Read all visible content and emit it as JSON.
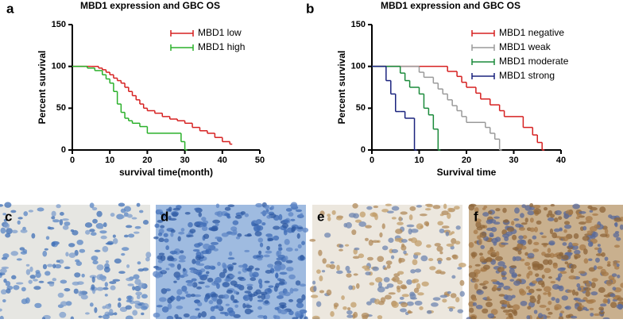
{
  "chart_data": [
    {
      "type": "step",
      "panel_label": "a",
      "title": "MBD1 expression and GBC OS",
      "xlabel": "survival time(month)",
      "ylabel": "Percent survival",
      "xlim": [
        0,
        50
      ],
      "xticks": [
        0,
        10,
        20,
        30,
        40,
        50
      ],
      "ylim": [
        0,
        150
      ],
      "yticks": [
        0,
        50,
        100,
        150
      ],
      "legend": "upper right",
      "series": [
        {
          "name": "MBD1 low",
          "color": "#d62020",
          "x": [
            0,
            5,
            7,
            8,
            9,
            10,
            11,
            12,
            13,
            14,
            15,
            16,
            17,
            18,
            19,
            20,
            22,
            24,
            26,
            28,
            30,
            32,
            34,
            36,
            38,
            40,
            42
          ],
          "values": [
            100,
            100,
            98,
            96,
            93,
            90,
            86,
            83,
            80,
            75,
            70,
            65,
            60,
            55,
            50,
            47,
            44,
            40,
            37,
            35,
            32,
            27,
            23,
            20,
            15,
            10,
            7
          ]
        },
        {
          "name": "MBD1 high",
          "color": "#2ab02a",
          "x": [
            0,
            4,
            6,
            8,
            9,
            10,
            11,
            12,
            13,
            14,
            15,
            16,
            18,
            20,
            29,
            30
          ],
          "values": [
            100,
            98,
            95,
            90,
            85,
            80,
            70,
            55,
            45,
            38,
            35,
            32,
            28,
            20,
            10,
            0
          ]
        }
      ]
    },
    {
      "type": "step",
      "panel_label": "b",
      "title": "MBD1 expression and GBC OS",
      "xlabel": "Survival time",
      "ylabel": "Percent survival",
      "xlim": [
        0,
        40
      ],
      "xticks": [
        0,
        10,
        20,
        30,
        40
      ],
      "ylim": [
        0,
        150
      ],
      "yticks": [
        0,
        50,
        100,
        150
      ],
      "legend": "upper right",
      "series": [
        {
          "name": "MBD1 negative",
          "color": "#d62020",
          "x": [
            0,
            16,
            18,
            19,
            20,
            22,
            23,
            25,
            27,
            28,
            32,
            34,
            35,
            36
          ],
          "values": [
            100,
            94,
            88,
            81,
            75,
            68,
            61,
            54,
            47,
            40,
            27,
            18,
            9,
            0
          ]
        },
        {
          "name": "MBD1 weak",
          "color": "#9a9a9a",
          "x": [
            0,
            10,
            11,
            13,
            14,
            15,
            16,
            17,
            18,
            19,
            20,
            24,
            25,
            26,
            27
          ],
          "values": [
            100,
            93,
            87,
            80,
            73,
            67,
            60,
            53,
            47,
            40,
            33,
            27,
            20,
            13,
            0
          ]
        },
        {
          "name": "MBD1 moderate",
          "color": "#1a8a3a",
          "x": [
            0,
            6,
            7,
            8,
            10,
            11,
            12,
            13,
            14
          ],
          "values": [
            100,
            92,
            83,
            75,
            67,
            50,
            42,
            25,
            0
          ]
        },
        {
          "name": "MBD1 strong",
          "color": "#1a237e",
          "x": [
            0,
            3,
            4,
            5,
            6,
            7,
            9
          ],
          "values": [
            100,
            83,
            67,
            46,
            46,
            38,
            0
          ]
        }
      ]
    }
  ],
  "image_panels": [
    {
      "label": "c"
    },
    {
      "label": "d"
    },
    {
      "label": "e"
    },
    {
      "label": "f"
    }
  ]
}
